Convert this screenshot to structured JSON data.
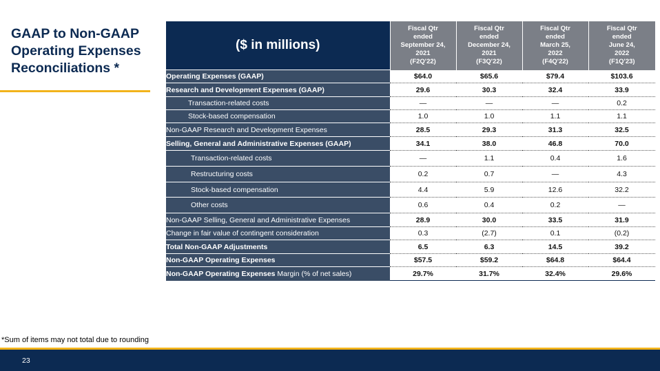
{
  "title": "GAAP to Non-GAAP Operating Expenses Reconciliations *",
  "table": {
    "corner_label": "($ in millions)",
    "columns": [
      {
        "l1": "Fiscal Qtr",
        "l2": "ended",
        "l3": "September 24,",
        "l4": "2021",
        "l5": "(F2Q'22)"
      },
      {
        "l1": "Fiscal Qtr",
        "l2": "ended",
        "l3": "December 24,",
        "l4": "2021",
        "l5": "(F3Q'22)"
      },
      {
        "l1": "Fiscal Qtr",
        "l2": "ended",
        "l3": "March 25,",
        "l4": "2022",
        "l5": "(F4Q'22)"
      },
      {
        "l1": "Fiscal Qtr",
        "l2": "ended",
        "l3": "June 24,",
        "l4": "2022",
        "l5": "(F1Q'23)"
      }
    ],
    "rows": [
      {
        "label": "Operating Expenses (GAAP)",
        "values": [
          "$64.0",
          "$65.6",
          "$79.4",
          "$103.6"
        ]
      },
      {
        "label": "Research and Development Expenses (GAAP)",
        "values": [
          "29.6",
          "30.3",
          "32.4",
          "33.9"
        ]
      },
      {
        "label": "Transaction-related costs",
        "values": [
          "—",
          "—",
          "—",
          "0.2"
        ]
      },
      {
        "label": "Stock-based compensation",
        "values": [
          "1.0",
          "1.0",
          "1.1",
          "1.1"
        ]
      },
      {
        "label": "Non-GAAP Research and Development Expenses",
        "values": [
          "28.5",
          "29.3",
          "31.3",
          "32.5"
        ]
      },
      {
        "label": "Selling, General and Administrative Expenses (GAAP)",
        "values": [
          "34.1",
          "38.0",
          "46.8",
          "70.0"
        ]
      },
      {
        "label": "Transaction-related costs",
        "values": [
          "—",
          "1.1",
          "0.4",
          "1.6"
        ]
      },
      {
        "label": "Restructuring costs",
        "values": [
          "0.2",
          "0.7",
          "—",
          "4.3"
        ]
      },
      {
        "label": "Stock-based compensation",
        "values": [
          "4.4",
          "5.9",
          "12.6",
          "32.2"
        ]
      },
      {
        "label": "Other costs",
        "values": [
          "0.6",
          "0.4",
          "0.2",
          "—"
        ]
      },
      {
        "label": "Non-GAAP Selling, General and Administrative Expenses",
        "values": [
          "28.9",
          "30.0",
          "33.5",
          "31.9"
        ]
      },
      {
        "label": "Change in fair value of contingent consideration",
        "values": [
          "0.3",
          "(2.7)",
          "0.1",
          "(0.2)"
        ]
      },
      {
        "label": "Total Non-GAAP Adjustments",
        "values": [
          "6.5",
          "6.3",
          "14.5",
          "39.2"
        ]
      },
      {
        "label": "Non-GAAP Operating Expenses",
        "values": [
          "$57.5",
          "$59.2",
          "$64.8",
          "$64.4"
        ]
      },
      {
        "label_bold": "Non-GAAP Operating Expenses",
        "label_rest": " Margin (% of net sales)",
        "values": [
          "29.7%",
          "31.7%",
          "32.4%",
          "29.6%"
        ]
      }
    ]
  },
  "footnote": "*Sum of items may not total due to rounding",
  "page_number": "23"
}
